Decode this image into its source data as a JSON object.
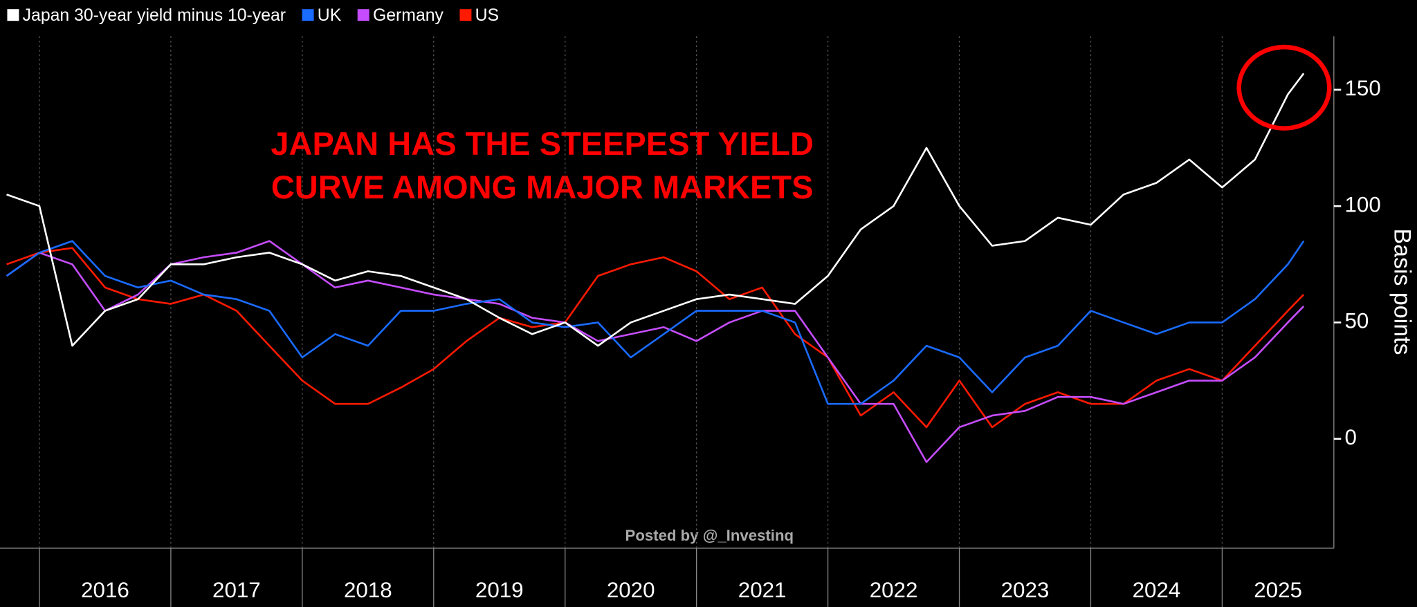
{
  "chart_data": {
    "type": "line",
    "annotation": [
      "JAPAN HAS THE STEEPEST YIELD",
      "CURVE AMONG MAJOR MARKETS"
    ],
    "watermark": "Posted by @_Investinq",
    "y_label": "Basis points",
    "x": [
      2015.75,
      2016,
      2016.25,
      2016.5,
      2016.75,
      2017,
      2017.25,
      2017.5,
      2017.75,
      2018,
      2018.25,
      2018.5,
      2018.75,
      2019,
      2019.25,
      2019.5,
      2019.75,
      2020,
      2020.25,
      2020.5,
      2020.75,
      2021,
      2021.25,
      2021.5,
      2021.75,
      2022,
      2022.25,
      2022.5,
      2022.75,
      2023,
      2023.25,
      2023.5,
      2023.75,
      2024,
      2024.25,
      2024.5,
      2024.75,
      2025,
      2025.25,
      2025.5,
      2025.62
    ],
    "xlim": [
      2015.7,
      2025.85
    ],
    "xticks": [
      2016,
      2017,
      2018,
      2019,
      2020,
      2021,
      2022,
      2023,
      2024,
      2025
    ],
    "ylim": [
      -47,
      173
    ],
    "yticks": [
      0,
      50,
      100,
      150
    ],
    "grid": true,
    "series": [
      {
        "name": "Japan 30-year yield minus 10-year",
        "color": "#ffffff",
        "values": [
          105,
          100,
          40,
          55,
          60,
          75,
          75,
          78,
          80,
          75,
          68,
          72,
          70,
          65,
          60,
          52,
          45,
          50,
          40,
          50,
          55,
          60,
          62,
          60,
          58,
          70,
          90,
          100,
          125,
          100,
          83,
          85,
          95,
          92,
          105,
          110,
          120,
          108,
          120,
          148,
          157
        ]
      },
      {
        "name": "UK",
        "color": "#1a6bff",
        "values": [
          70,
          80,
          85,
          70,
          65,
          68,
          62,
          60,
          55,
          35,
          45,
          40,
          55,
          55,
          58,
          60,
          50,
          48,
          50,
          35,
          45,
          55,
          55,
          55,
          50,
          15,
          15,
          25,
          40,
          35,
          20,
          35,
          40,
          55,
          50,
          45,
          50,
          50,
          60,
          75,
          85
        ]
      },
      {
        "name": "Germany",
        "color": "#c64dff",
        "values": [
          70,
          80,
          75,
          55,
          62,
          75,
          78,
          80,
          85,
          75,
          65,
          68,
          65,
          62,
          60,
          58,
          52,
          50,
          42,
          45,
          48,
          42,
          50,
          55,
          55,
          35,
          15,
          15,
          -10,
          5,
          10,
          12,
          18,
          18,
          15,
          20,
          25,
          25,
          35,
          50,
          57
        ]
      },
      {
        "name": "US",
        "color": "#ff1a00",
        "values": [
          75,
          80,
          82,
          65,
          60,
          58,
          62,
          55,
          40,
          25,
          15,
          15,
          22,
          30,
          42,
          52,
          48,
          50,
          70,
          75,
          78,
          72,
          60,
          65,
          45,
          35,
          10,
          20,
          5,
          25,
          5,
          15,
          20,
          15,
          15,
          25,
          30,
          25,
          40,
          55,
          62
        ]
      }
    ]
  }
}
